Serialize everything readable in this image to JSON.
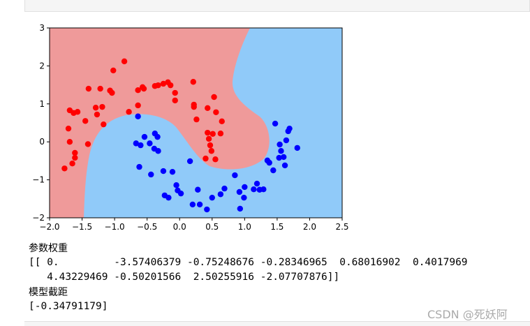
{
  "chart_data": {
    "type": "scatter",
    "xlim": [
      -2,
      2.5
    ],
    "ylim": [
      -2,
      3
    ],
    "xticks": [
      {
        "value": -2,
        "label": "−2.0"
      },
      {
        "value": -1.5,
        "label": "−1.5"
      },
      {
        "value": -1,
        "label": "−1.0"
      },
      {
        "value": -0.5,
        "label": "−0.5"
      },
      {
        "value": 0,
        "label": "0.0"
      },
      {
        "value": 0.5,
        "label": "0.5"
      },
      {
        "value": 1,
        "label": "1.0"
      },
      {
        "value": 1.5,
        "label": "1.5"
      },
      {
        "value": 2,
        "label": "2.0"
      },
      {
        "value": 2.5,
        "label": "2.5"
      }
    ],
    "yticks": [
      {
        "value": -2,
        "label": "−2"
      },
      {
        "value": -1,
        "label": "−1"
      },
      0,
      1,
      2,
      3
    ],
    "series": [
      {
        "color": "#ff0000",
        "x": [
          -1.77,
          -1.71,
          -1.69,
          -1.63,
          -1.57,
          -1.69,
          -1.61,
          -1.61,
          -1.65,
          -1.41,
          -1.45,
          -1.4,
          -1.29,
          -1.27,
          -1.19,
          -1.22,
          -1.17,
          -1.07,
          -1.04,
          -1.02,
          -0.85,
          -0.78,
          -0.64,
          -0.64,
          -0.57,
          -0.55,
          -0.38,
          -0.33,
          -0.25,
          -0.18,
          -0.14,
          -0.07,
          -0.07,
          0.21,
          0.22,
          0.22,
          0.26,
          0.43,
          0.53,
          0.56,
          0.65,
          0.43,
          0.51,
          0.45,
          0.47,
          0.49,
          0.4,
          0.55,
          0.63
        ],
        "y": [
          -0.7,
          0.35,
          0.83,
          0.76,
          0.79,
          0,
          -0.29,
          -0.42,
          -0.57,
          -0.06,
          0.55,
          1.4,
          0.9,
          0.72,
          0.92,
          1.4,
          0.46,
          1.35,
          1.29,
          1.88,
          2.12,
          0.79,
          0.96,
          1.36,
          1.44,
          1.4,
          1.47,
          1.49,
          1.53,
          1.57,
          1.49,
          1.29,
          1.09,
          1.58,
          0.98,
          0.92,
          0.59,
          0.89,
          1.18,
          0.78,
          0.54,
          0.24,
          0.21,
          0.08,
          -0.09,
          -0.24,
          -0.44,
          -0.46,
          0.22
        ]
      },
      {
        "color": "#0000ff",
        "x": [
          -0.64,
          -0.67,
          -0.6,
          -0.54,
          -0.62,
          -0.44,
          -0.46,
          -0.39,
          -0.33,
          -0.38,
          -0.34,
          -0.25,
          -0.11,
          -0.23,
          -0.17,
          -0.05,
          -0.03,
          0.02,
          0.2,
          0.31,
          0.42,
          0.28,
          0.16,
          0.5,
          0.63,
          0.69,
          0.85,
          0.92,
          0.99,
          0.93,
          1,
          1.14,
          1.19,
          1.23,
          1.29,
          1.35,
          1.38,
          1.44,
          1.47,
          1.54,
          1.56,
          1.53,
          1.62,
          1.6,
          1.64,
          1.67,
          1.69,
          1.81
        ],
        "y": [
          0.67,
          -0.04,
          -0.09,
          0.13,
          -0.66,
          -0.86,
          -0.04,
          -0.18,
          -0.24,
          0.22,
          0.13,
          -0.77,
          -0.79,
          -1.41,
          -1.47,
          -1.14,
          -1.28,
          -1.36,
          -1.65,
          -1.65,
          -1.78,
          -1.26,
          -0.51,
          -1.47,
          -1.38,
          -1.23,
          -0.88,
          -1.32,
          -1.47,
          -1.76,
          -1.19,
          -1.25,
          -1.1,
          -1.26,
          -1.25,
          -0.49,
          -0.55,
          -0.75,
          0.48,
          -0.07,
          -0.24,
          -0.42,
          -0.62,
          -0.4,
          0.04,
          0.28,
          0.35,
          -0.16
        ]
      }
    ]
  },
  "text_output": {
    "weights_label": "参数权重",
    "weights": [
      "[[ 0.         -3.57406379 -0.75248676 -0.28346965  0.68016902  0.4017969",
      "   4.43229469 -0.50201566  2.50255916 -2.07707876]]"
    ],
    "intercept_label": "模型截距",
    "intercept": "[-0.34791179]"
  },
  "watermark": "CSDN @死妖阿"
}
